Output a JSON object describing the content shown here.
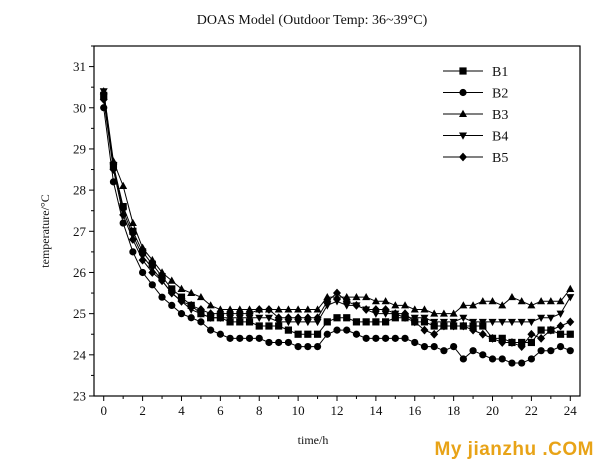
{
  "watermark": "My jianzhu .COM",
  "chart_data": {
    "type": "line",
    "title": "DOAS Model (Outdoor Temp: 36~39°C)",
    "xlabel": "time/h",
    "ylabel": "temperature/°C",
    "xlim": [
      -0.5,
      24.5
    ],
    "ylim": [
      23,
      31.5
    ],
    "xticks": [
      0,
      2,
      4,
      6,
      8,
      10,
      12,
      14,
      16,
      18,
      20,
      22,
      24
    ],
    "yticks": [
      23,
      24,
      25,
      26,
      27,
      28,
      29,
      30,
      31
    ],
    "grid": false,
    "legend_position": "top-right",
    "x": [
      0,
      0.5,
      1,
      1.5,
      2,
      2.5,
      3,
      3.5,
      4,
      4.5,
      5,
      5.5,
      6,
      6.5,
      7,
      7.5,
      8,
      8.5,
      9,
      9.5,
      10,
      10.5,
      11,
      11.5,
      12,
      12.5,
      13,
      13.5,
      14,
      14.5,
      15,
      15.5,
      16,
      16.5,
      17,
      17.5,
      18,
      18.5,
      19,
      19.5,
      20,
      20.5,
      21,
      21.5,
      22,
      22.5,
      23,
      23.5,
      24
    ],
    "series": [
      {
        "name": "B1",
        "marker": "square",
        "values": [
          30.3,
          28.6,
          27.6,
          27.0,
          26.5,
          26.2,
          25.9,
          25.6,
          25.4,
          25.2,
          25.0,
          24.9,
          24.9,
          24.8,
          24.8,
          24.8,
          24.7,
          24.7,
          24.7,
          24.6,
          24.5,
          24.5,
          24.5,
          24.8,
          24.9,
          24.9,
          24.8,
          24.8,
          24.8,
          24.8,
          24.9,
          24.9,
          24.8,
          24.8,
          24.7,
          24.7,
          24.7,
          24.7,
          24.7,
          24.7,
          24.4,
          24.4,
          24.3,
          24.3,
          24.3,
          24.6,
          24.6,
          24.5,
          24.5
        ]
      },
      {
        "name": "B2",
        "marker": "circle",
        "values": [
          30.0,
          28.2,
          27.2,
          26.5,
          26.0,
          25.7,
          25.4,
          25.2,
          25.0,
          24.9,
          24.8,
          24.6,
          24.5,
          24.4,
          24.4,
          24.4,
          24.4,
          24.3,
          24.3,
          24.3,
          24.2,
          24.2,
          24.2,
          24.5,
          24.6,
          24.6,
          24.5,
          24.4,
          24.4,
          24.4,
          24.4,
          24.4,
          24.3,
          24.2,
          24.2,
          24.1,
          24.2,
          23.9,
          24.1,
          24.0,
          23.9,
          23.9,
          23.8,
          23.8,
          23.9,
          24.1,
          24.1,
          24.2,
          24.1
        ]
      },
      {
        "name": "B3",
        "marker": "triangle-up",
        "values": [
          30.4,
          28.7,
          28.1,
          27.2,
          26.6,
          26.3,
          26.0,
          25.8,
          25.6,
          25.5,
          25.4,
          25.2,
          25.1,
          25.1,
          25.1,
          25.1,
          25.1,
          25.1,
          25.1,
          25.1,
          25.1,
          25.1,
          25.1,
          25.4,
          25.4,
          25.4,
          25.4,
          25.4,
          25.3,
          25.3,
          25.2,
          25.2,
          25.1,
          25.1,
          25.0,
          25.0,
          25.0,
          25.2,
          25.2,
          25.3,
          25.3,
          25.2,
          25.4,
          25.3,
          25.2,
          25.3,
          25.3,
          25.3,
          25.6
        ]
      },
      {
        "name": "B4",
        "marker": "triangle-down",
        "values": [
          30.4,
          28.6,
          27.5,
          26.9,
          26.4,
          26.1,
          25.8,
          25.5,
          25.3,
          25.1,
          25.0,
          24.9,
          24.9,
          24.9,
          24.9,
          24.9,
          24.9,
          24.9,
          24.8,
          24.8,
          24.8,
          24.8,
          24.8,
          25.2,
          25.3,
          25.2,
          25.2,
          25.1,
          25.0,
          25.0,
          25.0,
          24.9,
          24.9,
          24.9,
          24.8,
          24.8,
          24.8,
          24.9,
          24.8,
          24.8,
          24.8,
          24.8,
          24.8,
          24.8,
          24.8,
          24.9,
          24.9,
          25.0,
          25.4
        ]
      },
      {
        "name": "B5",
        "marker": "diamond",
        "values": [
          30.2,
          28.5,
          27.4,
          26.8,
          26.3,
          26.0,
          25.8,
          25.5,
          25.3,
          25.2,
          25.1,
          25.0,
          25.0,
          25.0,
          25.0,
          25.0,
          25.1,
          25.1,
          24.9,
          24.9,
          24.9,
          24.9,
          24.9,
          25.3,
          25.5,
          25.3,
          25.2,
          25.1,
          25.1,
          25.1,
          25.0,
          25.0,
          24.8,
          24.6,
          24.5,
          24.7,
          24.7,
          24.7,
          24.6,
          24.5,
          24.4,
          24.3,
          24.3,
          24.2,
          24.5,
          24.4,
          24.6,
          24.7,
          24.8
        ]
      }
    ]
  }
}
